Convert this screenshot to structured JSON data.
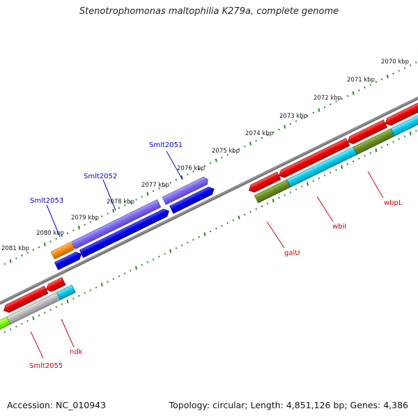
{
  "title": "Stenotrophomonas maltophilia K279a, complete genome",
  "footer": {
    "accession": "Accession: NC_010943",
    "topology": "Topology: circular; Length: 4,851,126 bp; Genes: 4,386"
  },
  "scale": {
    "unit": "kbp",
    "ticks": [
      {
        "label": "2070 kbp"
      },
      {
        "label": "2071 kbp"
      },
      {
        "label": "2072 kbp"
      },
      {
        "label": "2073 kbp"
      },
      {
        "label": "2074 kbp"
      },
      {
        "label": "2075 kbp"
      },
      {
        "label": "2076 kbp"
      },
      {
        "label": "2077 kbp"
      },
      {
        "label": "2078 kbp"
      },
      {
        "label": "2079 kbp"
      },
      {
        "label": "2080 kbp"
      },
      {
        "label": "2081 kbp"
      }
    ]
  },
  "genes": {
    "upper": [
      {
        "label": "Smlt2051",
        "color": "#0000cc"
      },
      {
        "label": "Smlt2052",
        "color": "#0000cc"
      },
      {
        "label": "Smlt2053",
        "color": "#0000cc"
      }
    ],
    "lower": [
      {
        "label": "wbpL",
        "color": "#cc0000"
      },
      {
        "label": "wbiI",
        "color": "#cc0000"
      },
      {
        "label": "galU",
        "color": "#cc0000"
      },
      {
        "label": "ndk",
        "color": "#cc0000"
      },
      {
        "label": "Smlt2055",
        "color": "#cc0000"
      }
    ]
  },
  "colors": {
    "backbone": "#7a7a7a",
    "tick_dots": "#1f8a1f",
    "cds_red": "#ee0000",
    "cds_blue": "#0000ee",
    "cds_violet": "#7b68ee",
    "cds_olive": "#6b8e23",
    "cds_cyan": "#00ccee",
    "cds_orange": "#ff8c00",
    "cds_gray": "#bbbbbb",
    "cds_lime": "#7fff00"
  }
}
